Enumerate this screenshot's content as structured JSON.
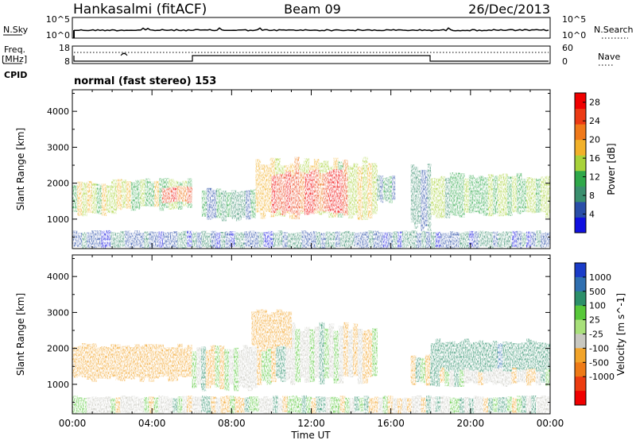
{
  "header": {
    "station": "Hankasalmi (fitACF)",
    "beam": "Beam 09",
    "date": "26/Dec/2013"
  },
  "panels": {
    "nsky": {
      "left_label": "N.Sky",
      "right_label": "N.Search",
      "left_ticks": [
        "10^5",
        "10^0"
      ],
      "right_ticks": [
        "10^5",
        "10^0"
      ]
    },
    "freq": {
      "left_label_1": "Freq.",
      "left_label_2": "[MHz]",
      "right_label": "Nave",
      "left_ticks": [
        "18",
        "8"
      ],
      "right_ticks": [
        "60",
        "0"
      ]
    },
    "cpid": {
      "label": "CPID",
      "mode": "normal (fast stereo) 153"
    }
  },
  "colors": {
    "power_scale": [
      "#1010e0",
      "#2a4ea8",
      "#3a8f6e",
      "#2fa84a",
      "#a8d23a",
      "#f2b12a",
      "#f0791a",
      "#ec3a14",
      "#f00000"
    ],
    "velocity_scale": [
      "#1a3cc8",
      "#2f6fb0",
      "#2c8f6a",
      "#58c83a",
      "#a8e07a",
      "#c8c8c0",
      "#f2a42a",
      "#ee7a16",
      "#ec3c10",
      "#f00000"
    ],
    "ground_scatter": "#c8c8c0"
  },
  "chart_data": [
    {
      "type": "heatmap",
      "title": "Power",
      "xlabel": "Time UT",
      "ylabel": "Slant Range [km]",
      "xlim": [
        0,
        24
      ],
      "ylim": [
        180,
        4600
      ],
      "x_ticks": [
        "00:00",
        "04:00",
        "08:00",
        "12:00",
        "16:00",
        "20:00",
        "00:00"
      ],
      "y_ticks": [
        "1000",
        "2000",
        "3000",
        "4000"
      ],
      "colorbar": {
        "label": "Power [dB]",
        "ticks": [
          "4",
          "8",
          "12",
          "16",
          "20",
          "24",
          "28"
        ],
        "range": [
          0,
          30
        ]
      },
      "regions": [
        {
          "t0": 0,
          "t1": 2.2,
          "r0": 1150,
          "r1": 2000,
          "level": 16
        },
        {
          "t0": 2.0,
          "t1": 6.0,
          "r0": 1300,
          "r1": 2100,
          "level": 14
        },
        {
          "t0": 4.5,
          "t1": 6.0,
          "r0": 1450,
          "r1": 1900,
          "level": 25
        },
        {
          "t0": 6.5,
          "t1": 9.2,
          "r0": 1000,
          "r1": 1800,
          "level": 8
        },
        {
          "t0": 9.2,
          "t1": 15.3,
          "r0": 1100,
          "r1": 2600,
          "level": 17
        },
        {
          "t0": 10.0,
          "t1": 13.8,
          "r0": 1200,
          "r1": 2300,
          "level": 27
        },
        {
          "t0": 15.3,
          "t1": 16.2,
          "r0": 1500,
          "r1": 2200,
          "level": 7
        },
        {
          "t0": 17.0,
          "t1": 18.0,
          "r0": 800,
          "r1": 2400,
          "level": 7
        },
        {
          "t0": 18.0,
          "t1": 24.0,
          "r0": 1100,
          "r1": 2200,
          "level": 13
        },
        {
          "t0": 0,
          "t1": 24.0,
          "r0": 200,
          "r1": 650,
          "level": 5
        }
      ]
    },
    {
      "type": "heatmap",
      "title": "Velocity",
      "xlabel": "Time UT",
      "ylabel": "Slant Range [km]",
      "xlim": [
        0,
        24
      ],
      "ylim": [
        180,
        4600
      ],
      "x_ticks": [
        "00:00",
        "04:00",
        "08:00",
        "12:00",
        "16:00",
        "20:00",
        "00:00"
      ],
      "y_ticks": [
        "1000",
        "2000",
        "3000",
        "4000"
      ],
      "colorbar": {
        "label": "Velocity [m s^-1]",
        "ticks": [
          "1000",
          "500",
          "100",
          "25",
          "-25",
          "-100",
          "-500",
          "-1000"
        ]
      },
      "regions": [
        {
          "t0": 0,
          "t1": 6.0,
          "r0": 1150,
          "r1": 2100,
          "velocity": -300
        },
        {
          "t0": 6.0,
          "t1": 9.5,
          "r0": 900,
          "r1": 2000,
          "velocity": 0
        },
        {
          "t0": 9.5,
          "t1": 15.3,
          "r0": 1100,
          "r1": 2600,
          "velocity": 0
        },
        {
          "t0": 9.0,
          "t1": 11.0,
          "r0": 2000,
          "r1": 3000,
          "velocity": -350
        },
        {
          "t0": 17.0,
          "t1": 24.0,
          "r0": 1000,
          "r1": 1800,
          "velocity": 0
        },
        {
          "t0": 18.0,
          "t1": 24.0,
          "r0": 1400,
          "r1": 2200,
          "velocity": 400
        },
        {
          "t0": 0,
          "t1": 24.0,
          "r0": 200,
          "r1": 650,
          "velocity": 0
        }
      ]
    }
  ]
}
